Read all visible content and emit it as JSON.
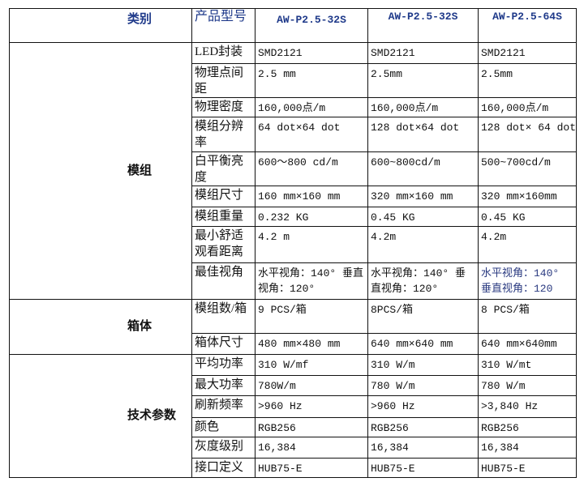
{
  "header": {
    "category": "类别",
    "product_model": "产品型号",
    "models": [
      "AW-P2.5-32S",
      "AW-P2.5-32S",
      "AW-P2.5-64S"
    ]
  },
  "groups": [
    {
      "name": "模组",
      "rows": [
        {
          "param": "LED封装",
          "values": [
            "SMD2121",
            "SMD2121",
            "SMD2121"
          ]
        },
        {
          "param": "物理点间距",
          "values": [
            "2.5 mm",
            "2.5mm",
            "2.5mm"
          ]
        },
        {
          "param": "物理密度",
          "values": [
            "160,000点/m",
            "160,000点/m",
            "160,000点/m"
          ]
        },
        {
          "param": "模组分辨率",
          "values": [
            "64 dot×64 dot",
            "128 dot×64 dot",
            "128 dot× 64 dot"
          ]
        },
        {
          "param": "白平衡亮度",
          "values": [
            "600～800 cd/m",
            "600~800cd/m",
            "500~700cd/m"
          ]
        },
        {
          "param": "模组尺寸",
          "values": [
            "160 mm×160 mm",
            "320 mm×160 mm",
            "320 mm×160mm"
          ]
        },
        {
          "param": "模组重量",
          "values": [
            "0.232 KG",
            "0.45 KG",
            "0.45 KG"
          ]
        },
        {
          "param": "最小舒适观看距离",
          "values": [
            "4.2 m",
            "4.2m",
            "4.2m"
          ]
        },
        {
          "param": "最佳视角",
          "values": [
            "水平视角：140° 垂直视角：120°",
            "水平视角：140° 垂直视角：120°",
            "水平视角：140° 垂直视角：120"
          ]
        }
      ]
    },
    {
      "name": "箱体",
      "rows": [
        {
          "param": "模组数/箱",
          "values": [
            "9 PCS/箱",
            "8PCS/箱",
            "8 PCS/箱"
          ]
        },
        {
          "param": "箱体尺寸",
          "values": [
            "480 mm×480 mm",
            "640 mm×640 mm",
            "640 mm×640mm"
          ]
        }
      ]
    },
    {
      "name": "技术参数",
      "rows": [
        {
          "param": "平均功率",
          "values": [
            "310 W/mf",
            "310 W/m",
            "310 W/mt"
          ]
        },
        {
          "param": "最大功率",
          "values": [
            "780W/m",
            "780 W/m",
            "780 W/m"
          ]
        },
        {
          "param": "刷新频率",
          "values": [
            ">960 Hz",
            ">960 Hz",
            ">3,840 Hz"
          ]
        },
        {
          "param": "颜色",
          "values": [
            "RGB256",
            "RGB256",
            "RGB256"
          ]
        },
        {
          "param": "灰度级别",
          "values": [
            "16,384",
            "16,384",
            "16,384"
          ]
        },
        {
          "param": "接口定义",
          "values": [
            "HUB75-E",
            "HUB75-E",
            "HUB75-E"
          ]
        }
      ]
    }
  ]
}
